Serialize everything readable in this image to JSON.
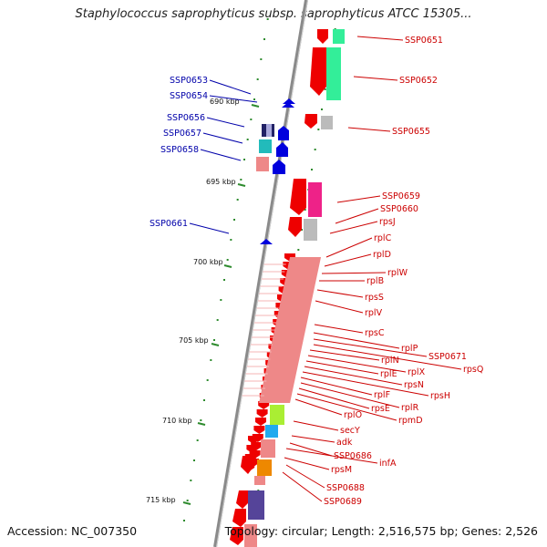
{
  "title": "Staphylococcus saprophyticus subsp. saprophyticus ATCC 15305...",
  "footer": {
    "accession": "Accession: NC_007350",
    "topology": "Topology: circular; Length: 2,516,575 bp; Genes: 2,526"
  },
  "colors": {
    "backbone": "#8a8a8a",
    "tick": "#2e8b2e",
    "forward_arrow": "#0000dd",
    "label_blue": "#0000aa",
    "label_red": "#cc0000",
    "gene_red": "#ee0000"
  },
  "scale_ticks": [
    "690 kbp",
    "695 kbp",
    "700 kbp",
    "705 kbp",
    "710 kbp",
    "715 kbp"
  ],
  "left_labels": [
    "SSP0653",
    "SSP0654",
    "SSP0656",
    "SSP0657",
    "SSP0658",
    "SSP0661"
  ],
  "right_labels": [
    "SSP0651",
    "SSP0652",
    "SSP0655",
    "SSP0659",
    "SSP0660",
    "rpsJ",
    "rplC",
    "rplD",
    "rplW",
    "rplB",
    "rpsS",
    "rplV",
    "rpsC",
    "rplP",
    "SSP0671",
    "rpsQ",
    "rplN",
    "rplX",
    "rplE",
    "rpsN",
    "rpsH",
    "rplF",
    "rplR",
    "rpsE",
    "rpmD",
    "rplO",
    "secY",
    "adk",
    "SSP0686",
    "infA",
    "rpsM",
    "SSP0688",
    "SSP0689"
  ]
}
